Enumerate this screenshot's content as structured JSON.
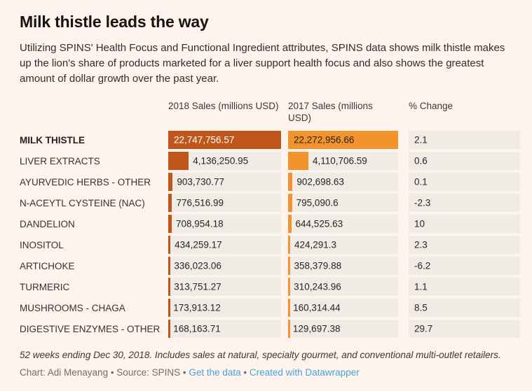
{
  "title": "Milk thistle leads the way",
  "subtitle": "Utilizing SPINS' Health Focus and Functional Ingredient attributes, SPINS data shows milk thistle makes up the lion's share of products marketed for a liver support health focus and also shows the greatest amount of dollar growth over the past year.",
  "colors": {
    "background": "#fef3ed",
    "cell_background": "#f0ebe4",
    "bar_2018": "#bf571c",
    "bar_2017": "#f2932e",
    "link": "#45a5da"
  },
  "table": {
    "headers": [
      "2018 Sales (millions USD)",
      "2017 Sales (millions USD)",
      "% Change"
    ],
    "rows": [
      {
        "label": "MILK THISTLE",
        "bold": true,
        "s2018": "22,747,756.57",
        "v2018": 22747756.57,
        "s2017": "22,272,956.66",
        "v2017": 22272956.66,
        "change": "2.1"
      },
      {
        "label": "LIVER EXTRACTS",
        "bold": false,
        "s2018": "4,136,250.95",
        "v2018": 4136250.95,
        "s2017": "4,110,706.59",
        "v2017": 4110706.59,
        "change": "0.6"
      },
      {
        "label": "AYURVEDIC HERBS - OTHER",
        "bold": false,
        "s2018": "903,730.77",
        "v2018": 903730.77,
        "s2017": "902,698.63",
        "v2017": 902698.63,
        "change": "0.1"
      },
      {
        "label": "N-ACEYTL CYSTEINE (NAC)",
        "bold": false,
        "s2018": "776,516.99",
        "v2018": 776516.99,
        "s2017": "795,090.6",
        "v2017": 795090.6,
        "change": "-2.3"
      },
      {
        "label": "DANDELION",
        "bold": false,
        "s2018": "708,954.18",
        "v2018": 708954.18,
        "s2017": "644,525.63",
        "v2017": 644525.63,
        "change": "10"
      },
      {
        "label": "INOSITOL",
        "bold": false,
        "s2018": "434,259.17",
        "v2018": 434259.17,
        "s2017": "424,291.3",
        "v2017": 424291.3,
        "change": "2.3"
      },
      {
        "label": "ARTICHOKE",
        "bold": false,
        "s2018": "336,023.06",
        "v2018": 336023.06,
        "s2017": "358,379.88",
        "v2017": 358379.88,
        "change": "-6.2"
      },
      {
        "label": "TURMERIC",
        "bold": false,
        "s2018": "313,751.27",
        "v2018": 313751.27,
        "s2017": "310,243.96",
        "v2017": 310243.96,
        "change": "1.1"
      },
      {
        "label": "MUSHROOMS - CHAGA",
        "bold": false,
        "s2018": "173,913.12",
        "v2018": 173913.12,
        "s2017": "160,314.44",
        "v2017": 160314.44,
        "change": "8.5"
      },
      {
        "label": "DIGESTIVE ENZYMES - OTHER",
        "bold": false,
        "s2018": "168,163.71",
        "v2018": 168163.71,
        "s2017": "129,697.38",
        "v2017": 129697.38,
        "change": "29.7"
      }
    ]
  },
  "chart_data": {
    "type": "table",
    "title": "Milk thistle leads the way",
    "columns": [
      "2018 Sales (millions USD)",
      "2017 Sales (millions USD)",
      "% Change"
    ],
    "categories": [
      "MILK THISTLE",
      "LIVER EXTRACTS",
      "AYURVEDIC HERBS - OTHER",
      "N-ACEYTL CYSTEINE (NAC)",
      "DANDELION",
      "INOSITOL",
      "ARTICHOKE",
      "TURMERIC",
      "MUSHROOMS - CHAGA",
      "DIGESTIVE ENZYMES - OTHER"
    ],
    "series": [
      {
        "name": "2018 Sales (millions USD)",
        "values": [
          22747756.57,
          4136250.95,
          903730.77,
          776516.99,
          708954.18,
          434259.17,
          336023.06,
          313751.27,
          173913.12,
          168163.71
        ]
      },
      {
        "name": "2017 Sales (millions USD)",
        "values": [
          22272956.66,
          4110706.59,
          902698.63,
          795090.6,
          644525.63,
          424291.3,
          358379.88,
          310243.96,
          160314.44,
          129697.38
        ]
      },
      {
        "name": "% Change",
        "values": [
          2.1,
          0.6,
          0.1,
          -2.3,
          10,
          2.3,
          -6.2,
          1.1,
          8.5,
          29.7
        ]
      }
    ],
    "bars_scaled_to": "column max",
    "legend": "none",
    "grid": "off"
  },
  "footnote": "52 weeks ending Dec 30, 2018. Includes sales at natural, specialty gourmet, and conventional multi-outlet retailers.",
  "credit": {
    "prefix": "Chart: Adi Menayang • Source: SPINS • ",
    "link1": "Get the data",
    "sep": " • ",
    "link2": "Created with Datawrapper"
  }
}
